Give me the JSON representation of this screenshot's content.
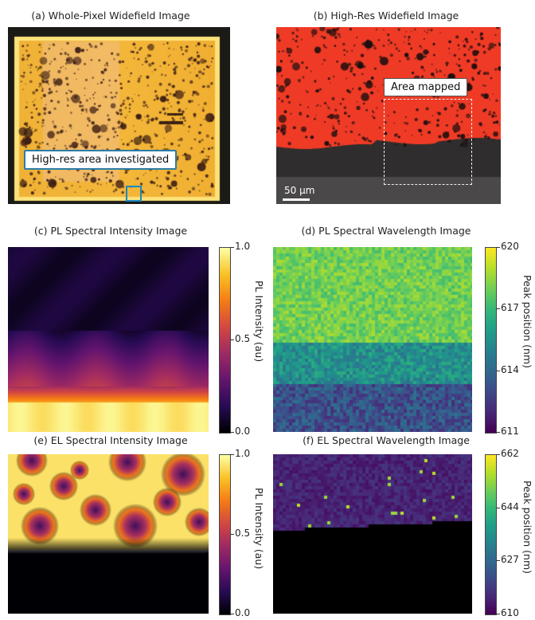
{
  "panels": {
    "a": {
      "title": "(a) Whole-Pixel Widefield Image",
      "annotation": "High-res area investigated"
    },
    "b": {
      "title": "(b) High-Res Widefield Image",
      "annotation": "Area mapped",
      "scale_label": "50 µm"
    },
    "c": {
      "title": "(c) PL Spectral Intensity Image"
    },
    "d": {
      "title": "(d) PL Spectral Wavelength Image"
    },
    "e": {
      "title": "(e) EL Spectral Intensity Image"
    },
    "f": {
      "title": "(f) EL Spectral Wavelength Image"
    }
  },
  "colorbars": {
    "c": {
      "label": "PL Intensity (au)",
      "ticks": [
        "1.0",
        "0.5",
        "0.0"
      ],
      "colormap": "inferno",
      "range": [
        0.0,
        1.0
      ]
    },
    "d": {
      "label": "Peak position (nm)",
      "ticks": [
        "620",
        "617",
        "614",
        "611"
      ],
      "colormap": "viridis",
      "range": [
        611,
        620
      ]
    },
    "e": {
      "label": "PL Intensity (au)",
      "ticks": [
        "1.0",
        "0.5",
        "0.0"
      ],
      "colormap": "inferno",
      "range": [
        0.0,
        1.0
      ]
    },
    "f": {
      "label": "Peak position (nm)",
      "ticks": [
        "662",
        "644",
        "627",
        "610"
      ],
      "colormap": "viridis",
      "range": [
        610,
        662
      ]
    }
  },
  "colors": {
    "callout_border": "#2a7da6",
    "whole_pixel_bg": "#f2b531",
    "highres_red": "#f03a24",
    "highres_dark": "#2e2e2e"
  }
}
